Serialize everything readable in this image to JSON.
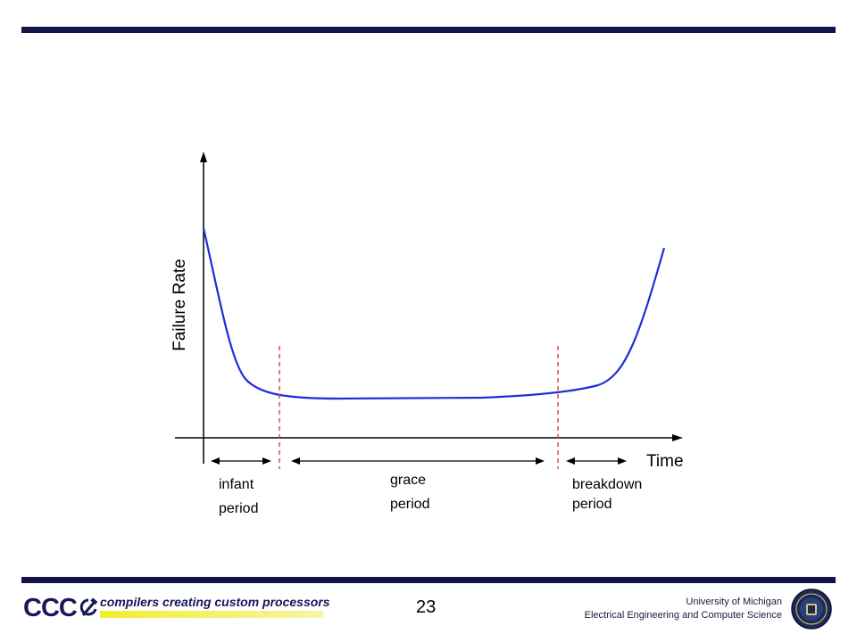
{
  "diagram": {
    "y_axis_label": "Failure Rate",
    "x_axis_label": "Time",
    "phases": [
      {
        "line1": "infant",
        "line2": "period"
      },
      {
        "line1": "grace",
        "line2": "period"
      },
      {
        "line1": "breakdown",
        "line2": "period"
      }
    ],
    "curve_color": "#1c2fd6",
    "divider_color": "#e03030"
  },
  "footer": {
    "logo_text": "CCC",
    "tagline": "compilers creating custom processors",
    "page_number": "23",
    "affiliation_line1": "University of Michigan",
    "affiliation_line2": "Electrical Engineering and Computer Science",
    "seal_icon": "university-seal-icon"
  }
}
